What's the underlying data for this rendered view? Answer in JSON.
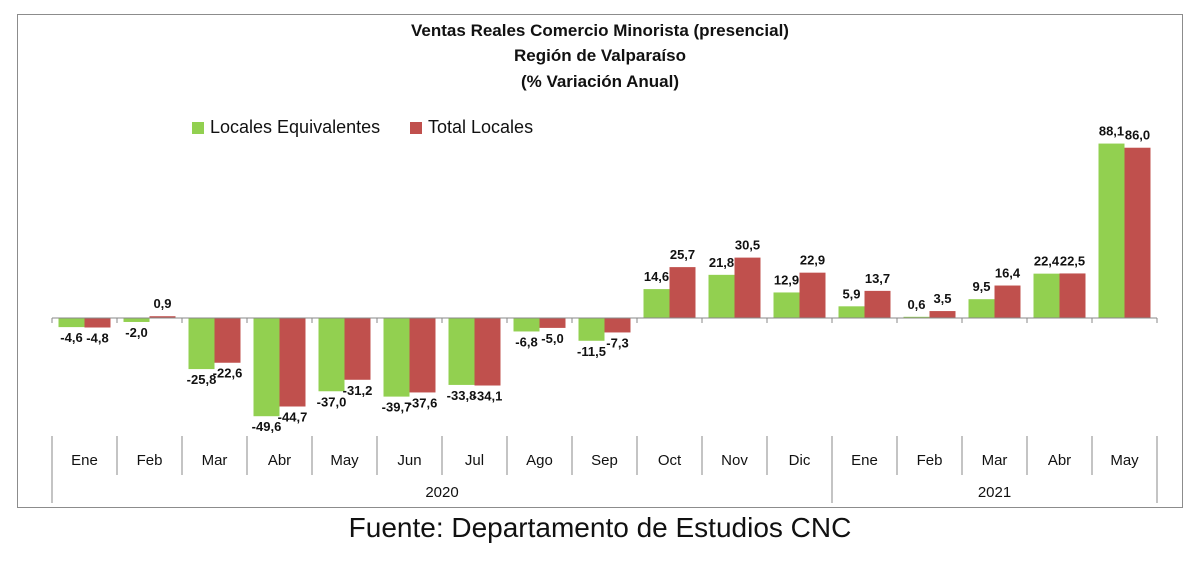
{
  "chart_data": {
    "type": "bar",
    "title_lines": [
      "Ventas Reales Comercio Minorista (presencial)",
      "Región de Valparaíso",
      "(% Variación Anual)"
    ],
    "categories": [
      "Ene",
      "Feb",
      "Mar",
      "Abr",
      "May",
      "Jun",
      "Jul",
      "Ago",
      "Sep",
      "Oct",
      "Nov",
      "Dic",
      "Ene",
      "Feb",
      "Mar",
      "Abr",
      "May"
    ],
    "year_groups": [
      {
        "label": "2020",
        "count": 12
      },
      {
        "label": "2021",
        "count": 5
      }
    ],
    "series": [
      {
        "name": "Locales Equivalentes",
        "color": "#92d050",
        "values": [
          -4.6,
          -2.0,
          -25.8,
          -49.6,
          -37.0,
          -39.7,
          -33.8,
          -6.8,
          -11.5,
          14.6,
          21.8,
          12.9,
          5.9,
          0.6,
          9.5,
          22.4,
          88.1
        ],
        "labels": [
          "-4,6",
          "-2,0",
          "-25,8",
          "-49,6",
          "-37,0",
          "-39,7",
          "-33,8",
          "-6,8",
          "-11,5",
          "14,6",
          "21,8",
          "12,9",
          "5,9",
          "0,6",
          "9,5",
          "22,4",
          "88,1"
        ]
      },
      {
        "name": "Total Locales",
        "color": "#c0504d",
        "values": [
          -4.8,
          0.9,
          -22.6,
          -44.7,
          -31.2,
          -37.6,
          -34.1,
          -5.0,
          -7.3,
          25.7,
          30.5,
          22.9,
          13.7,
          3.5,
          16.4,
          22.5,
          86.0
        ],
        "labels": [
          "-4,8",
          "0,9",
          "-22,6",
          "-44,7",
          "-31,2",
          "-37,6",
          "-34,1",
          "-5,0",
          "-7,3",
          "25,7",
          "30,5",
          "22,9",
          "13,7",
          "3,5",
          "16,4",
          "22,5",
          "86,0"
        ]
      }
    ],
    "legend_position": "top-left",
    "grid": false,
    "source": "Fuente: Departamento de Estudios CNC"
  }
}
